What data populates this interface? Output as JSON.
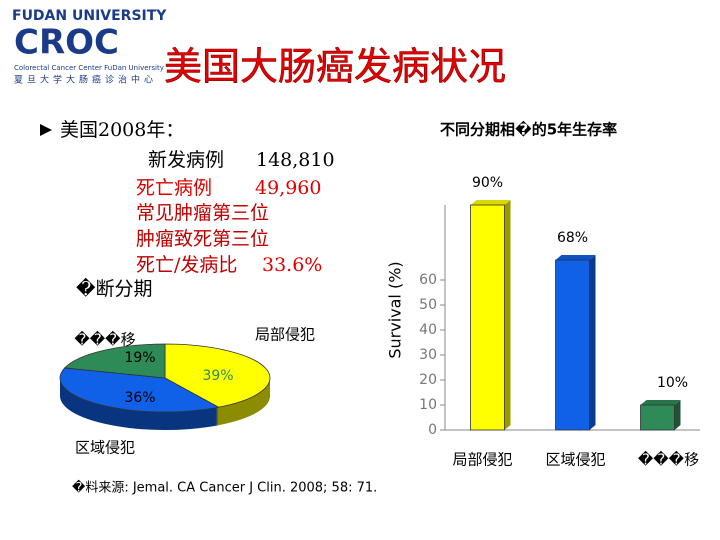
{
  "header": {
    "university": "FUDAN UNIVERSITY",
    "logo": "CROC",
    "center_en": "Colorectal Cancer Center FuDan University",
    "center_cn": "夏旦大学大肠癌诊治中心"
  },
  "title": "美国大肠癌发病状况",
  "bullet": {
    "heading": "美国2008年：",
    "lines": [
      {
        "label": "新发病例",
        "value": "148,810"
      },
      {
        "label": "死亡病例",
        "value": "49,960"
      },
      {
        "label": "常见肿瘤第三位"
      },
      {
        "label": "肿瘤致死第三位"
      },
      {
        "label": "死亡/发病比",
        "value": "33.6%"
      },
      {
        "label": "�断分期"
      }
    ]
  },
  "chart_data": [
    {
      "type": "pie",
      "categories": [
        "局部侵犯",
        "区域侵犯",
        "���移"
      ],
      "values": [
        39,
        36,
        19
      ],
      "value_labels": [
        "39%",
        "36%",
        "19%"
      ],
      "colors": [
        "#ffff00",
        "#1060e8",
        "#2e8b57"
      ]
    },
    {
      "type": "bar",
      "title": "不同分期相�的5年生存率",
      "y_label": "Survival (%)",
      "categories": [
        "局部侵犯",
        "区域侵犯",
        "���移"
      ],
      "values": [
        90,
        68,
        10
      ],
      "value_labels": [
        "90%",
        "68%",
        "10%"
      ],
      "colors": [
        "#ffff00",
        "#1060e8",
        "#2e8b57"
      ],
      "ylim": [
        0,
        90
      ],
      "yticks": [
        0,
        10,
        20,
        30,
        40,
        50,
        60
      ]
    }
  ],
  "source": "�料来源: Jemal. CA Cancer J Clin. 2008; 58: 71."
}
